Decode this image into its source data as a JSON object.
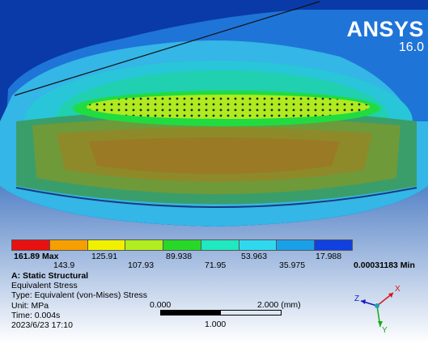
{
  "logo": {
    "name": "ANSYS",
    "version": "16.0"
  },
  "legend": {
    "max_label": "161.89 Max",
    "min_label": "0.00031183 Min",
    "upper_ticks": [
      "125.91",
      "89.938",
      "53.963",
      "17.988"
    ],
    "lower_ticks": [
      "143.9",
      "107.93",
      "71.95",
      "35.975"
    ],
    "colors": [
      "#e81010",
      "#f5a000",
      "#f0f000",
      "#b0ee20",
      "#28d828",
      "#20e8c0",
      "#30d8ee",
      "#1aa0e8",
      "#1040e0"
    ]
  },
  "info": {
    "title": "A: Static Structural",
    "result": "Equivalent Stress",
    "type": "Type: Equivalent (von-Mises) Stress",
    "unit": "Unit: MPa",
    "time": "Time: 0.004s",
    "date": "2023/6/23 17:10"
  },
  "scale": {
    "start": "0.000",
    "end": "2.000 (mm)",
    "mid": "1.000"
  },
  "triad": {
    "x": "X",
    "y": "Y",
    "z": "Z"
  }
}
